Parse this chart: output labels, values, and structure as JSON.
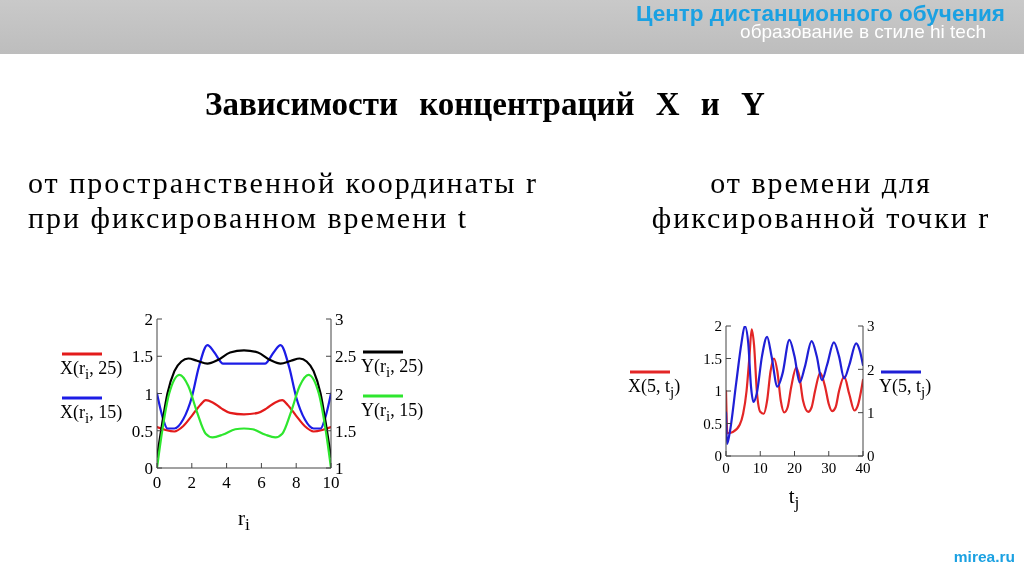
{
  "chart_data": [
    {
      "type": "line",
      "title": "Зависимости концентраций X и Y",
      "subtitle": "от пространственной координаты r\nпри фиксированном времени t",
      "xlabel": "r$_{i}$",
      "annotations": [
        "Центр дистанционного обучения",
        "образование в стиле hi tech",
        "mirea.ru"
      ],
      "xlim": [
        0,
        10
      ],
      "xticks": [
        0,
        2,
        4,
        6,
        8,
        10
      ],
      "ylim": [
        0,
        2
      ],
      "yticks": [
        0,
        0.5,
        1,
        1.5,
        2
      ],
      "y2lim": [
        1,
        3
      ],
      "y2ticks": [
        1,
        1.5,
        2,
        2.5,
        3
      ],
      "legend": "left",
      "line_style": "solid",
      "series": [
        {
          "name": "X(r$_{i}$, 25)",
          "color": "#e31b1b",
          "x": [
            0,
            0.5,
            1,
            1.5,
            2,
            2.5,
            2.8,
            3.2,
            3.7,
            4.2,
            5,
            5.8,
            6.3,
            6.8,
            7.2,
            7.5,
            8,
            8.5,
            9,
            9.5,
            10
          ],
          "values": [
            0.55,
            0.51,
            0.49,
            0.56,
            0.7,
            0.85,
            0.91,
            0.88,
            0.8,
            0.74,
            0.72,
            0.74,
            0.8,
            0.88,
            0.91,
            0.85,
            0.7,
            0.56,
            0.49,
            0.51,
            0.55
          ]
        },
        {
          "name": "X(r$_{i}$, 15)",
          "color": "#1c1ce6",
          "x": [
            0,
            0.3,
            0.6,
            1,
            1.5,
            2,
            2.4,
            2.9,
            3.3,
            3.8,
            4.5,
            5,
            5.5,
            6.2,
            6.7,
            7.1,
            7.6,
            8,
            8.5,
            9,
            9.4,
            9.7,
            10
          ],
          "values": [
            1.0,
            0.7,
            0.53,
            0.53,
            0.65,
            0.95,
            1.35,
            1.65,
            1.55,
            1.4,
            1.4,
            1.4,
            1.4,
            1.4,
            1.55,
            1.65,
            1.35,
            0.95,
            0.65,
            0.53,
            0.53,
            0.7,
            1.0
          ]
        },
        {
          "name": "Y(r$_{i}$, 25)",
          "color": "#000000",
          "axis": "y2",
          "x": [
            0,
            0.3,
            0.6,
            1,
            1.4,
            1.8,
            2.3,
            2.9,
            3.5,
            4.2,
            5,
            5.8,
            6.5,
            7.1,
            7.7,
            8.2,
            8.6,
            9,
            9.4,
            9.7,
            10
          ],
          "values": [
            1.15,
            1.6,
            2.0,
            2.3,
            2.43,
            2.47,
            2.44,
            2.4,
            2.45,
            2.55,
            2.58,
            2.55,
            2.45,
            2.4,
            2.44,
            2.47,
            2.43,
            2.3,
            2.0,
            1.6,
            1.15
          ]
        },
        {
          "name": "Y(r$_{i}$, 15)",
          "color": "#2ee62e",
          "axis": "y2",
          "x": [
            0,
            0.3,
            0.7,
            1.3,
            1.8,
            2.3,
            2.8,
            3.2,
            3.8,
            4.5,
            5,
            5.5,
            6.2,
            6.8,
            7.2,
            7.7,
            8.2,
            8.7,
            9.3,
            9.7,
            10
          ],
          "values": [
            1.0,
            1.5,
            2.0,
            2.25,
            2.1,
            1.75,
            1.46,
            1.41,
            1.45,
            1.52,
            1.53,
            1.52,
            1.45,
            1.41,
            1.46,
            1.75,
            2.1,
            2.25,
            2.0,
            1.5,
            1.0
          ]
        }
      ]
    },
    {
      "type": "line",
      "subtitle": "от времени для\nфиксированной точки r",
      "xlabel": "t$_{j}$",
      "xlim": [
        0,
        40
      ],
      "xticks": [
        0,
        10,
        20,
        30,
        40
      ],
      "ylim": [
        0,
        2
      ],
      "yticks": [
        0,
        0.5,
        1,
        1.5,
        2
      ],
      "y2lim": [
        0,
        3
      ],
      "y2ticks": [
        0,
        1,
        2,
        3
      ],
      "legend": "left",
      "line_style": "solid",
      "series": [
        {
          "name": "X(5, t$_{j}$)",
          "color": "#e32626",
          "x": [
            0,
            0.4,
            2,
            4,
            5,
            6,
            6.8,
            7.5,
            8.2,
            9,
            10,
            11,
            12,
            13,
            14,
            15,
            16,
            17,
            18,
            19,
            20.5,
            21.5,
            22.5,
            24,
            25,
            26,
            27.5,
            29,
            30,
            31,
            32,
            33,
            34.5,
            36,
            37.5,
            38.5,
            40
          ],
          "values": [
            1.0,
            0.35,
            0.37,
            0.48,
            0.65,
            1.0,
            1.5,
            1.95,
            1.7,
            1.0,
            0.68,
            0.65,
            0.85,
            1.3,
            1.5,
            1.3,
            0.85,
            0.67,
            0.75,
            1.05,
            1.36,
            1.2,
            0.85,
            0.68,
            0.75,
            1.0,
            1.28,
            1.05,
            0.8,
            0.69,
            0.75,
            1.0,
            1.22,
            0.95,
            0.7,
            0.78,
            1.17
          ]
        },
        {
          "name": "Y(5, t$_{j}$)",
          "color": "#1f1fd6",
          "axis": "y2",
          "x": [
            0,
            0.3,
            1,
            3,
            4.5,
            5.5,
            6.5,
            7.3,
            8,
            9,
            10.5,
            12,
            13.3,
            15,
            16.5,
            18.5,
            20,
            21.5,
            23,
            25,
            26.5,
            28,
            29.5,
            31.5,
            33,
            34.5,
            36,
            38,
            39,
            40
          ],
          "values": [
            1.0,
            0.28,
            0.5,
            1.7,
            2.6,
            3.0,
            2.6,
            1.6,
            1.25,
            1.45,
            2.3,
            2.75,
            2.3,
            1.6,
            1.9,
            2.68,
            2.3,
            1.7,
            2.05,
            2.65,
            2.3,
            1.75,
            2.1,
            2.62,
            2.3,
            1.79,
            2.1,
            2.6,
            2.45,
            2.1
          ]
        }
      ]
    }
  ]
}
